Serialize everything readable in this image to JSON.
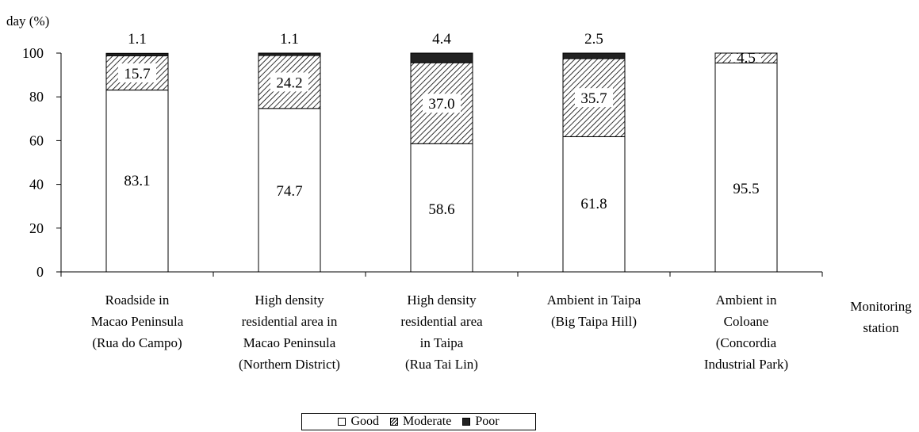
{
  "chart_data": {
    "type": "bar",
    "stacked": true,
    "ylabel": "day (%)",
    "xlabel": [
      "Monitoring",
      "station"
    ],
    "ylim": [
      0,
      100
    ],
    "yticks": [
      0,
      20,
      40,
      60,
      80,
      100
    ],
    "categories": [
      [
        "Roadside in",
        "Macao Peninsula",
        "(Rua do Campo)"
      ],
      [
        "High density",
        "residential area in",
        "Macao Peninsula",
        "(Northern District)"
      ],
      [
        "High density",
        "residential area",
        "in Taipa",
        "(Rua Tai Lin)"
      ],
      [
        "Ambient in Taipa",
        "(Big Taipa Hill)"
      ],
      [
        "Ambient in",
        "Coloane",
        "(Concordia",
        "Industrial Park)"
      ]
    ],
    "series": [
      {
        "name": "Good",
        "values": [
          83.1,
          74.7,
          58.6,
          61.8,
          95.5
        ],
        "labels": [
          "83.1",
          "74.7",
          "58.6",
          "61.8",
          "95.5"
        ]
      },
      {
        "name": "Moderate",
        "values": [
          15.7,
          24.2,
          37.0,
          35.7,
          4.5
        ],
        "labels": [
          "15.7",
          "24.2",
          "37.0",
          "35.7",
          "4.5"
        ]
      },
      {
        "name": "Poor",
        "values": [
          1.1,
          1.1,
          4.4,
          2.5,
          0
        ],
        "labels": [
          "1.1",
          "1.1",
          "4.4",
          "2.5",
          ""
        ]
      }
    ],
    "colors": {
      "Good": "#ffffff",
      "Moderate": "hatched",
      "Poor": "#222222"
    },
    "legend": {
      "position": "bottom-center",
      "items": [
        "Good",
        "Moderate",
        "Poor"
      ]
    },
    "grid": false
  }
}
